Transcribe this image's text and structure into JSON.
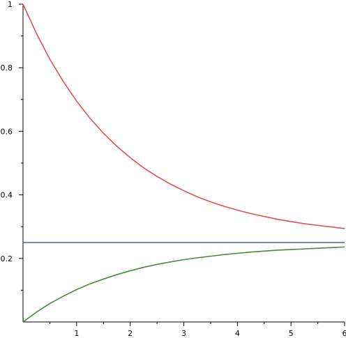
{
  "chart_data": {
    "type": "line",
    "title": "",
    "xlabel": "",
    "ylabel": "",
    "xlim": [
      0,
      6
    ],
    "ylim": [
      0,
      1
    ],
    "grid": false,
    "legend": "none",
    "x_ticks": [
      1,
      2,
      3,
      4,
      5,
      6
    ],
    "x_tick_labels": [
      "1",
      "2",
      "3",
      "4",
      "5",
      "6"
    ],
    "x_minor_step": 0.5,
    "y_ticks": [
      0.2,
      0.4,
      0.6,
      0.8,
      1
    ],
    "y_tick_labels": [
      "0.2",
      "0.4",
      "0.6",
      "0.8",
      "1"
    ],
    "y_minor_step": 0.1,
    "x": [
      0,
      0.25,
      0.5,
      0.75,
      1,
      1.25,
      1.5,
      1.75,
      2,
      2.25,
      2.5,
      2.75,
      3,
      3.25,
      3.5,
      3.75,
      4,
      4.25,
      4.5,
      4.75,
      5,
      5.25,
      5.5,
      5.75,
      6
    ],
    "series": [
      {
        "color": "#e05050",
        "values": [
          1.0,
          0.908,
          0.827,
          0.757,
          0.695,
          0.641,
          0.594,
          0.553,
          0.517,
          0.485,
          0.458,
          0.434,
          0.413,
          0.394,
          0.378,
          0.364,
          0.352,
          0.341,
          0.332,
          0.323,
          0.316,
          0.309,
          0.304,
          0.299,
          0.294
        ]
      },
      {
        "color": "#4060c0",
        "values": [
          0.25,
          0.25,
          0.25,
          0.25,
          0.25,
          0.25,
          0.25,
          0.25,
          0.25,
          0.25,
          0.25,
          0.25,
          0.25,
          0.25,
          0.25,
          0.25,
          0.25,
          0.25,
          0.25,
          0.25,
          0.25,
          0.25,
          0.25,
          0.25,
          0.25
        ]
      },
      {
        "color": "#4a8a3a",
        "values": [
          0.0,
          0.031,
          0.058,
          0.081,
          0.102,
          0.12,
          0.135,
          0.149,
          0.161,
          0.172,
          0.181,
          0.189,
          0.196,
          0.202,
          0.207,
          0.212,
          0.216,
          0.22,
          0.223,
          0.226,
          0.228,
          0.23,
          0.232,
          0.234,
          0.236
        ]
      }
    ]
  }
}
